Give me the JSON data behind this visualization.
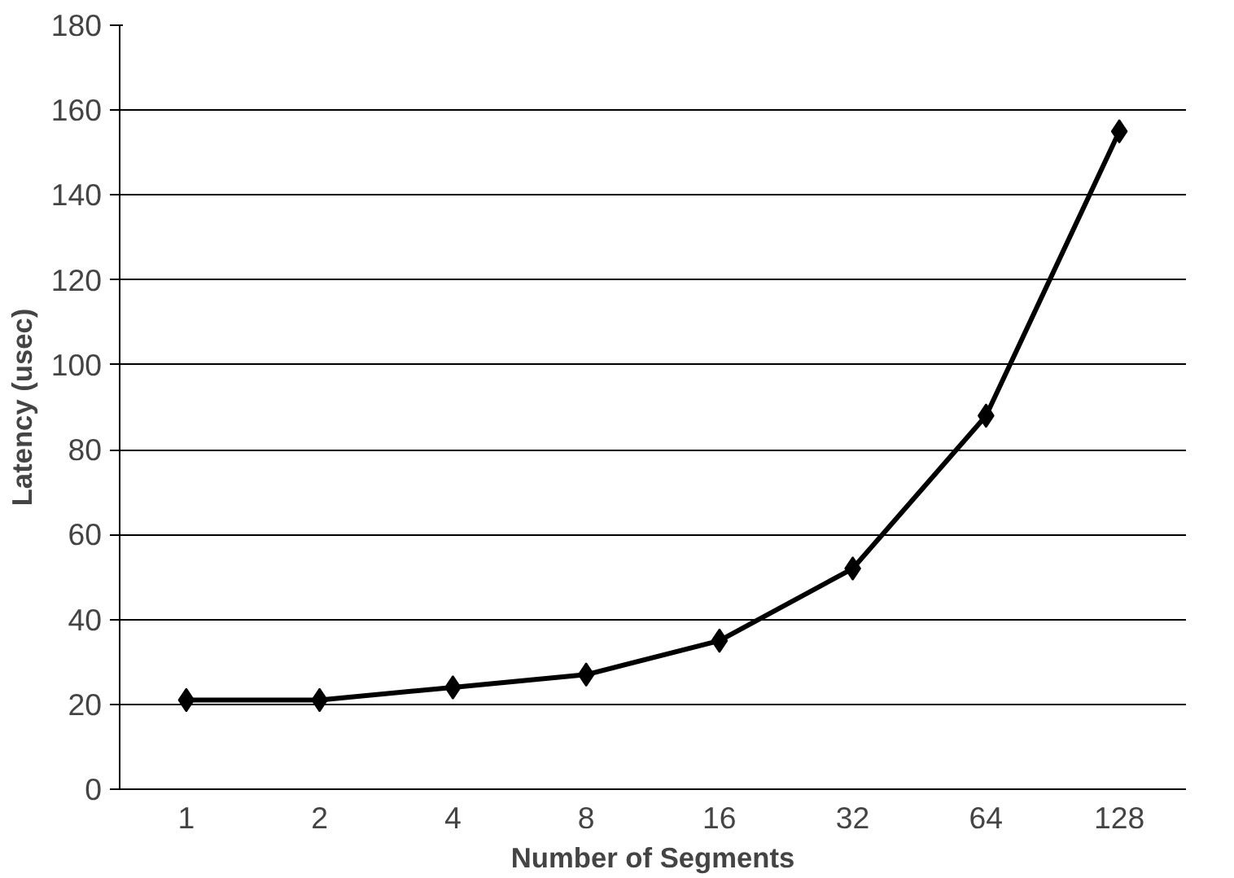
{
  "chart_data": {
    "type": "line",
    "xlabel": "Number of Segments",
    "ylabel": "Latency (usec)",
    "categories": [
      "1",
      "2",
      "4",
      "8",
      "16",
      "32",
      "64",
      "128"
    ],
    "series": [
      {
        "color": "#000000",
        "values": [
          21,
          21,
          24,
          27,
          35,
          52,
          88,
          155
        ]
      }
    ],
    "ylim": [
      0,
      180
    ],
    "yticks": [
      0,
      20,
      40,
      60,
      80,
      100,
      120,
      140,
      160,
      180
    ],
    "grid": "y",
    "marker": "diamond",
    "line_style": "solid"
  }
}
